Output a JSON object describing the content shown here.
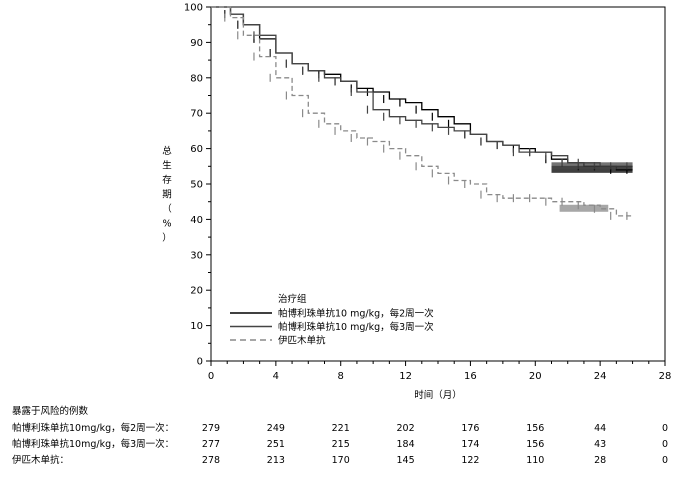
{
  "chart_data": {
    "type": "line",
    "xlabel": "时间（月）",
    "ylabel": "总生存期（%）",
    "xlim": [
      0,
      28
    ],
    "ylim": [
      0,
      100
    ],
    "x_ticks": [
      0,
      4,
      8,
      12,
      16,
      20,
      24,
      28
    ],
    "y_ticks": [
      0,
      10,
      20,
      30,
      40,
      50,
      60,
      70,
      80,
      90,
      100
    ],
    "grid": false,
    "legend_title": "治疗组",
    "legend_position": "bottom-left",
    "series": [
      {
        "name": "帕博利珠单抗10 mg/kg，每2周一次",
        "color": "#000000",
        "dash": "solid",
        "x": [
          0,
          1.2,
          2,
          3,
          4,
          5,
          6,
          7,
          8,
          9,
          10,
          11,
          12,
          13,
          14,
          15,
          16,
          17,
          18,
          19,
          20,
          21,
          22,
          23,
          24,
          25,
          26
        ],
        "y": [
          100,
          98,
          95,
          91,
          87,
          84,
          82,
          81,
          79,
          77,
          76,
          74,
          73,
          71,
          69,
          67,
          64,
          62,
          61,
          60,
          59,
          57,
          56,
          55,
          55,
          54,
          54
        ]
      },
      {
        "name": "帕博利珠单抗10 mg/kg，每3周一次",
        "color": "#444444",
        "dash": "solid",
        "x": [
          0,
          1.2,
          2,
          3,
          4,
          5,
          6,
          7,
          8,
          9,
          10,
          11,
          12,
          13,
          14,
          15,
          16,
          17,
          18,
          19,
          20,
          21,
          22,
          23,
          24,
          25,
          26
        ],
        "y": [
          100,
          98,
          95,
          92,
          87,
          84,
          82,
          80,
          79,
          76,
          71,
          69,
          68,
          67,
          66,
          65,
          64,
          62,
          61,
          59,
          59,
          58,
          56,
          56,
          55,
          55,
          55
        ]
      },
      {
        "name": "伊匹木单抗",
        "color": "#8a8a8a",
        "dash": "dashed",
        "x": [
          0,
          1.2,
          2,
          3,
          4,
          5,
          6,
          7,
          8,
          9,
          10,
          11,
          12,
          13,
          14,
          15,
          16,
          17,
          18,
          19,
          20,
          21,
          22,
          23,
          24,
          25,
          26
        ],
        "y": [
          100,
          97,
          92,
          86,
          80,
          75,
          70,
          67,
          65,
          63,
          62,
          60,
          58,
          55,
          53,
          51,
          50,
          47,
          46,
          46,
          46,
          45,
          45,
          44,
          43,
          41,
          41
        ]
      }
    ]
  },
  "risk_table": {
    "title": "暴露于风险的例数",
    "time_points": [
      0,
      4,
      8,
      12,
      16,
      20,
      24,
      28
    ],
    "rows": [
      {
        "label": "帕博利珠单抗10mg/kg，每2周一次：",
        "values": [
          "279",
          "249",
          "221",
          "202",
          "176",
          "156",
          "44",
          "0"
        ]
      },
      {
        "label": "帕博利珠单抗10mg/kg，每3周一次：",
        "values": [
          "277",
          "251",
          "215",
          "184",
          "174",
          "156",
          "43",
          "0"
        ]
      },
      {
        "label": "伊匹木单抗：",
        "values": [
          "278",
          "213",
          "170",
          "145",
          "122",
          "110",
          "28",
          "0"
        ]
      }
    ]
  },
  "ylabel_chars": [
    "总",
    "生",
    "存",
    "期",
    "（",
    "%",
    "）"
  ]
}
